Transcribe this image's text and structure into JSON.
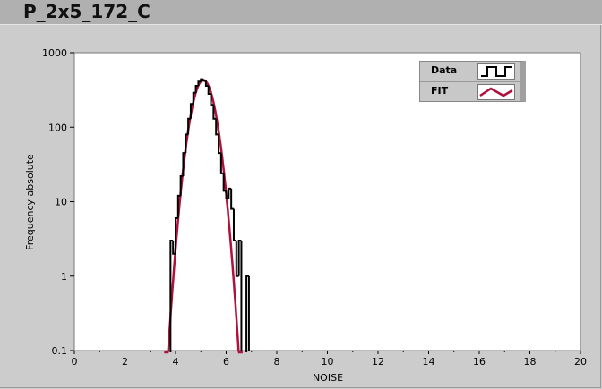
{
  "title": "P_2x5_172_C",
  "chart_data": {
    "type": "line",
    "xlabel": "NOISE",
    "ylabel": "Frequency absolute",
    "xlim": [
      0,
      20
    ],
    "ylim": [
      0.1,
      1000
    ],
    "yscale": "log",
    "grid": false,
    "legend_position": "top-right",
    "xticks": [
      "0",
      "2",
      "4",
      "6",
      "8",
      "10",
      "12",
      "14",
      "16",
      "18",
      "20"
    ],
    "yticks": [
      "0.1",
      "1",
      "10",
      "100",
      "1000"
    ],
    "series": [
      {
        "name": "Data",
        "style": "step",
        "color": "#000000",
        "bin_width": 0.1,
        "x": [
          3.8,
          3.9,
          4.0,
          4.1,
          4.2,
          4.3,
          4.4,
          4.5,
          4.6,
          4.7,
          4.8,
          4.9,
          5.0,
          5.1,
          5.2,
          5.3,
          5.4,
          5.5,
          5.6,
          5.7,
          5.8,
          5.9,
          6.0,
          6.1,
          6.2,
          6.3,
          6.4,
          6.5,
          6.6,
          6.7,
          6.8
        ],
        "y": [
          3,
          2,
          6,
          12,
          22,
          45,
          80,
          130,
          205,
          290,
          360,
          410,
          440,
          420,
          360,
          280,
          200,
          130,
          80,
          45,
          24,
          14,
          11,
          15,
          8,
          3,
          1,
          3,
          0,
          0,
          1
        ]
      },
      {
        "name": "FIT",
        "style": "line",
        "color": "#b0103c",
        "gaussian": {
          "amplitude": 430,
          "mean": 5.1,
          "sigma": 0.34
        },
        "x_range": [
          3.55,
          6.65
        ]
      }
    ]
  }
}
